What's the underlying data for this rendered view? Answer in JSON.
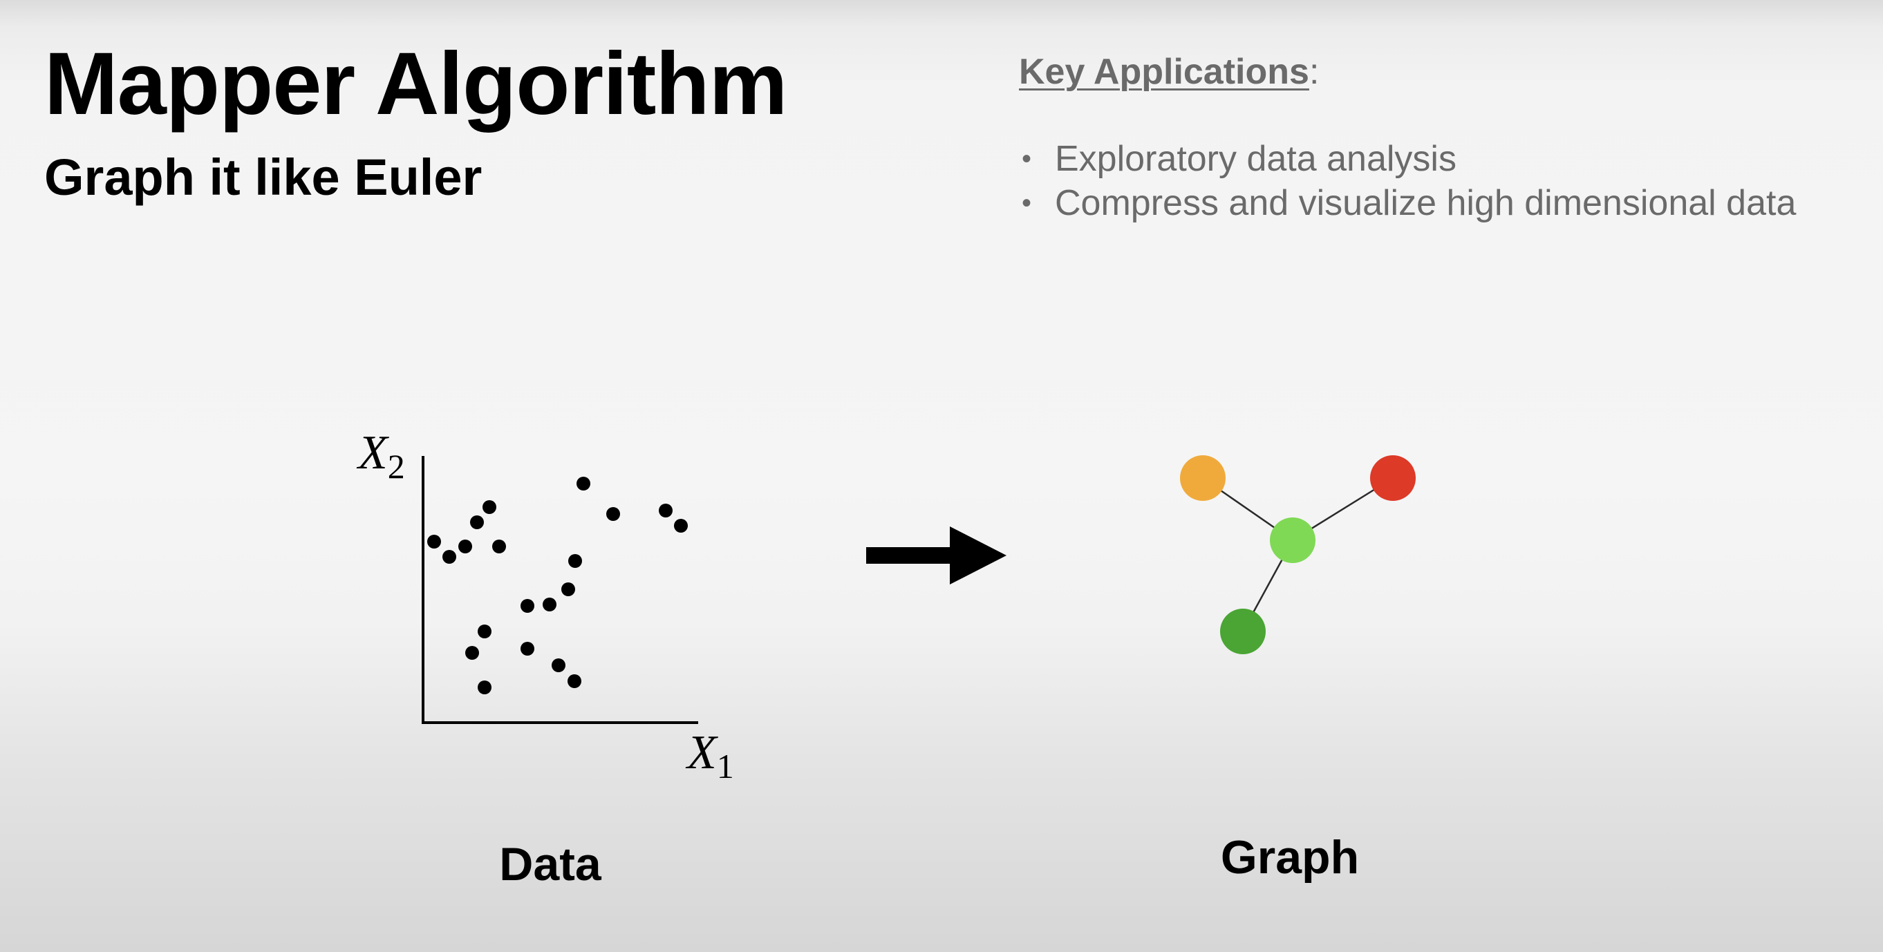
{
  "title": "Mapper Algorithm",
  "subtitle": "Graph it like Euler",
  "applications": {
    "heading": "Key Applications",
    "heading_suffix": ":",
    "items": [
      "Exploratory data analysis",
      "Compress and visualize high dimensional data"
    ]
  },
  "data_panel": {
    "caption": "Data",
    "x_axis": {
      "symbol": "X",
      "subscript": "1"
    },
    "y_axis": {
      "symbol": "X",
      "subscript": "2"
    }
  },
  "graph_panel": {
    "caption": "Graph",
    "nodes": [
      {
        "id": "orange",
        "color": "#F0AA3C"
      },
      {
        "id": "red",
        "color": "#DD3A28"
      },
      {
        "id": "center",
        "color": "#7FD955"
      },
      {
        "id": "dark-green",
        "color": "#4AA534"
      }
    ],
    "edges": [
      [
        "orange",
        "center"
      ],
      [
        "red",
        "center"
      ],
      [
        "dark-green",
        "center"
      ]
    ]
  },
  "transform_arrow": "right-arrow-icon"
}
